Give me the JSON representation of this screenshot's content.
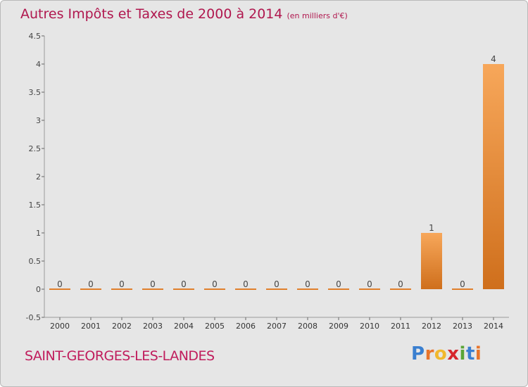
{
  "title": "Autres Impôts et Taxes de 2000 à 2014",
  "unit_label": "(en milliers d'€)",
  "commune": "SAINT-GEORGES-LES-LANDES",
  "logo": {
    "letters": [
      "P",
      "r",
      "o",
      "x",
      "i",
      "t",
      "i"
    ],
    "colors": [
      "#3a7fd0",
      "#e8742a",
      "#f1b82d",
      "#d6262d",
      "#5aa537",
      "#3a7fd0",
      "#e8742a"
    ]
  },
  "chart_data": {
    "type": "bar",
    "title": "Autres Impôts et Taxes de 2000 à 2014",
    "subtitle": "(en milliers d'€)",
    "categories": [
      "2000",
      "2001",
      "2002",
      "2003",
      "2004",
      "2005",
      "2006",
      "2007",
      "2008",
      "2009",
      "2010",
      "2011",
      "2012",
      "2013",
      "2014"
    ],
    "values": [
      0,
      0,
      0,
      0,
      0,
      0,
      0,
      0,
      0,
      0,
      0,
      0,
      1,
      0,
      4
    ],
    "data_labels": [
      "0",
      "0",
      "0",
      "0",
      "0",
      "0",
      "0",
      "0",
      "0",
      "0",
      "0",
      "0",
      "1",
      "0",
      "4"
    ],
    "ylim": [
      -0.5,
      4.5
    ],
    "y_ticks": [
      -0.5,
      0,
      0.5,
      1,
      1.5,
      2,
      2.5,
      3,
      3.5,
      4,
      4.5
    ],
    "y_tick_labels": [
      "-0.5",
      "0",
      "0.5",
      "1",
      "1.5",
      "2",
      "2.5",
      "3",
      "3.5",
      "4",
      "4.5"
    ],
    "xlabel": "",
    "ylabel": "",
    "grid": false,
    "bar_color_light": "#f7a75a",
    "bar_color_dark": "#cf6f1c"
  }
}
